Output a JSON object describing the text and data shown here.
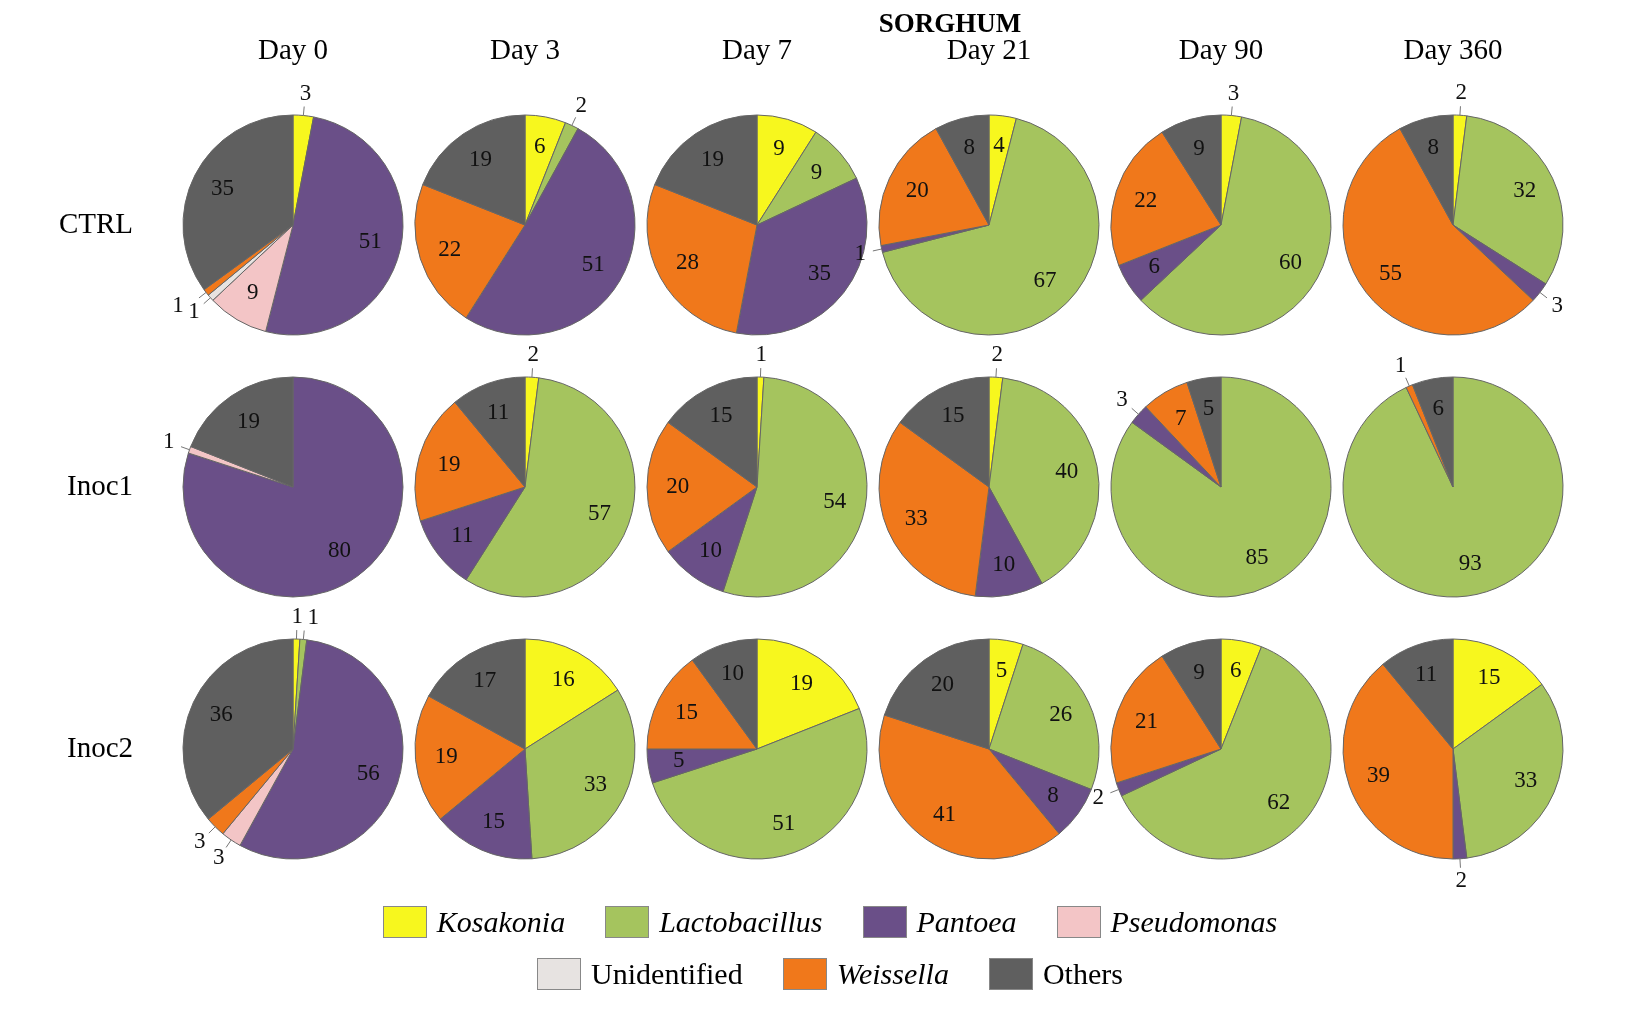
{
  "chart_data": [
    {
      "type": "other",
      "title": "SORGHUM"
    },
    {
      "type": "pie",
      "title": "Day 0",
      "ylabel": "CTRL",
      "legend": "bottom",
      "data_labels": true,
      "categories": [
        "Kosakonia",
        "Lactobacillus",
        "Pantoea",
        "Pseudomonas",
        "Unidentified",
        "Weissella",
        "Others"
      ],
      "colors": [
        "#f7f71e",
        "#a5c45e",
        "#6a4f88",
        "#f3c5c6",
        "#e7e3e1",
        "#f0781b",
        "#5f5f5f"
      ],
      "values": [
        3,
        null,
        51,
        9,
        1,
        1,
        35
      ]
    },
    {
      "type": "pie",
      "title": "Day 3",
      "data_labels": true,
      "values": [
        6,
        2,
        51,
        null,
        null,
        22,
        19
      ]
    },
    {
      "type": "pie",
      "title": "Day 7",
      "data_labels": true,
      "values": [
        9,
        9,
        35,
        null,
        null,
        28,
        19
      ]
    },
    {
      "type": "pie",
      "title": "Day 21",
      "data_labels": true,
      "values": [
        4,
        67,
        1,
        null,
        null,
        20,
        8
      ]
    },
    {
      "type": "pie",
      "title": "Day 90",
      "data_labels": true,
      "values": [
        3,
        60,
        6,
        null,
        null,
        22,
        9
      ]
    },
    {
      "type": "pie",
      "title": "Day 360",
      "data_labels": true,
      "values": [
        2,
        32,
        3,
        null,
        null,
        55,
        8
      ]
    },
    {
      "type": "pie",
      "ylabel": "Inoc1",
      "data_labels": true,
      "values": [
        null,
        null,
        80,
        1,
        null,
        null,
        19
      ]
    },
    {
      "type": "pie",
      "data_labels": true,
      "values": [
        2,
        57,
        11,
        null,
        null,
        19,
        11
      ]
    },
    {
      "type": "pie",
      "data_labels": true,
      "values": [
        1,
        54,
        10,
        null,
        null,
        20,
        15
      ]
    },
    {
      "type": "pie",
      "data_labels": true,
      "values": [
        2,
        40,
        10,
        null,
        null,
        33,
        15
      ]
    },
    {
      "type": "pie",
      "data_labels": true,
      "values": [
        null,
        85,
        3,
        null,
        null,
        7,
        5
      ]
    },
    {
      "type": "pie",
      "data_labels": true,
      "values": [
        null,
        93,
        null,
        null,
        null,
        1,
        6
      ]
    },
    {
      "type": "pie",
      "ylabel": "Inoc2",
      "data_labels": true,
      "values": [
        1,
        1,
        56,
        3,
        null,
        3,
        36
      ]
    },
    {
      "type": "pie",
      "data_labels": true,
      "values": [
        16,
        33,
        15,
        null,
        null,
        19,
        17
      ]
    },
    {
      "type": "pie",
      "data_labels": true,
      "values": [
        19,
        51,
        5,
        null,
        null,
        15,
        10
      ]
    },
    {
      "type": "pie",
      "data_labels": true,
      "values": [
        5,
        26,
        8,
        null,
        null,
        41,
        20
      ]
    },
    {
      "type": "pie",
      "data_labels": true,
      "values": [
        6,
        62,
        2,
        null,
        null,
        21,
        9
      ]
    },
    {
      "type": "pie",
      "data_labels": true,
      "values": [
        15,
        33,
        2,
        null,
        null,
        39,
        11
      ]
    }
  ]
}
